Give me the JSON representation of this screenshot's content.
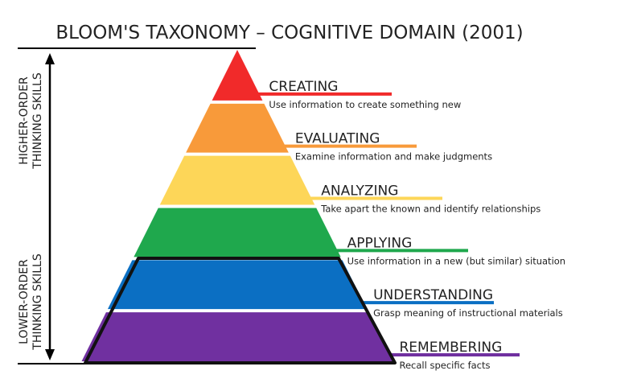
{
  "title": "BLOOM'S TAXONOMY – COGNITIVE DOMAIN (2001)",
  "side_labels": {
    "higher": [
      "HIGHER-ORDER",
      "THINKING SKILLS"
    ],
    "lower": [
      "LOWER-ORDER",
      "THINKING SKILLS"
    ]
  },
  "levels": [
    {
      "name": "CREATING",
      "description": "Use information to create something new",
      "color": "#f12a2a"
    },
    {
      "name": "EVALUATING",
      "description": "Examine information and make judgments",
      "color": "#f89a3a"
    },
    {
      "name": "ANALYZING",
      "description": "Take apart the known and identify relationships",
      "color": "#fdd658"
    },
    {
      "name": "APPLYING",
      "description": "Use information in a new (but similar) situation",
      "color": "#1fa84d"
    },
    {
      "name": "UNDERSTANDING",
      "description": "Grasp meaning of instructional materials",
      "color": "#0b6fc3"
    },
    {
      "name": "REMEMBERING",
      "description": "Recall specific facts",
      "color": "#7030a0"
    }
  ]
}
